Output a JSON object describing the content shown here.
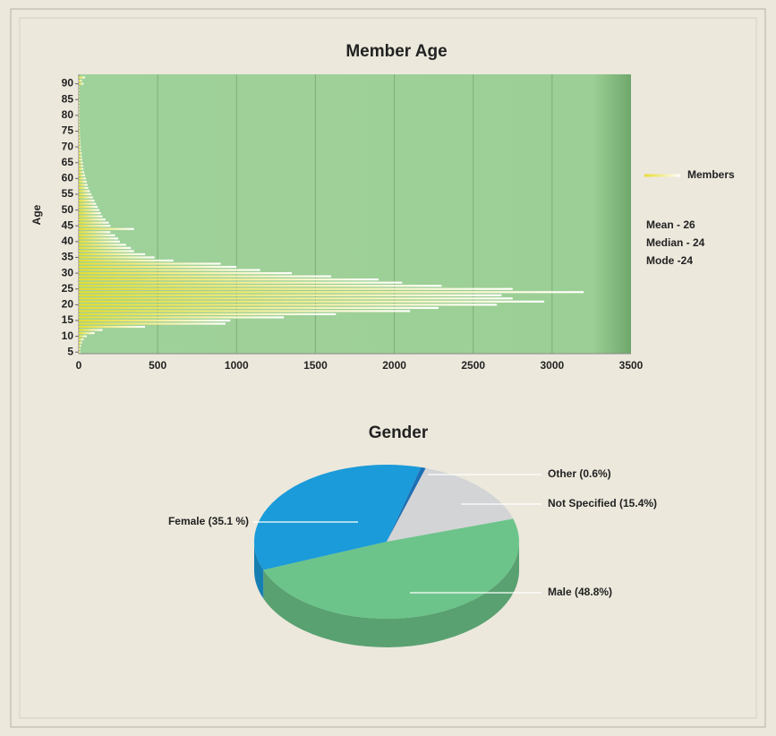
{
  "chart_data": [
    {
      "type": "bar",
      "orientation": "horizontal",
      "title": "Member Age",
      "ylabel": "Age",
      "y": [
        5,
        6,
        7,
        8,
        9,
        10,
        11,
        12,
        13,
        14,
        15,
        16,
        17,
        18,
        19,
        20,
        21,
        22,
        23,
        24,
        25,
        26,
        27,
        28,
        29,
        30,
        31,
        32,
        33,
        34,
        35,
        36,
        37,
        38,
        39,
        40,
        41,
        42,
        43,
        44,
        45,
        46,
        47,
        48,
        49,
        50,
        51,
        52,
        53,
        54,
        55,
        56,
        57,
        58,
        59,
        60,
        61,
        62,
        63,
        64,
        65,
        66,
        67,
        68,
        69,
        70,
        71,
        72,
        73,
        74,
        75,
        76,
        77,
        78,
        79,
        80,
        81,
        82,
        83,
        84,
        85,
        86,
        87,
        88,
        89,
        90,
        91,
        92
      ],
      "series": [
        {
          "name": "Members",
          "color": "#e6dc2e",
          "values": [
            10,
            10,
            15,
            20,
            30,
            50,
            100,
            150,
            420,
            930,
            960,
            1300,
            1630,
            2100,
            2280,
            2650,
            2950,
            2750,
            2680,
            3200,
            2750,
            2300,
            2050,
            1900,
            1600,
            1350,
            1150,
            1000,
            900,
            600,
            480,
            420,
            350,
            330,
            300,
            260,
            250,
            230,
            200,
            350,
            200,
            190,
            170,
            150,
            140,
            130,
            120,
            110,
            100,
            90,
            80,
            70,
            60,
            55,
            50,
            45,
            40,
            35,
            30,
            28,
            25,
            22,
            20,
            18,
            15,
            14,
            12,
            10,
            9,
            8,
            7,
            6,
            6,
            5,
            5,
            5,
            5,
            5,
            4,
            4,
            4,
            3,
            3,
            3,
            3,
            30,
            20,
            40
          ]
        }
      ],
      "xlim": [
        0,
        3500
      ],
      "xticks": [
        0,
        500,
        1000,
        1500,
        2000,
        2500,
        3000,
        3500
      ],
      "ylim": [
        4.5,
        93
      ],
      "yticks": [
        5,
        10,
        15,
        20,
        25,
        30,
        35,
        40,
        45,
        50,
        55,
        60,
        65,
        70,
        75,
        80,
        85,
        90
      ],
      "grid": true,
      "legend": "right",
      "annotations": [
        "Mean - 26",
        "Median - 24",
        "Mode -24"
      ]
    },
    {
      "type": "pie",
      "title": "Gender",
      "categories": [
        "Other (0.6%)",
        "Not Specified (15.4%)",
        "Male (48.8%)",
        "Female (35.1 %)"
      ],
      "values": [
        0.6,
        15.4,
        48.8,
        35.1
      ],
      "colors": [
        "#1d6fb5",
        "#d3d4d6",
        "#6cc48a",
        "#1b9bd9"
      ]
    }
  ]
}
